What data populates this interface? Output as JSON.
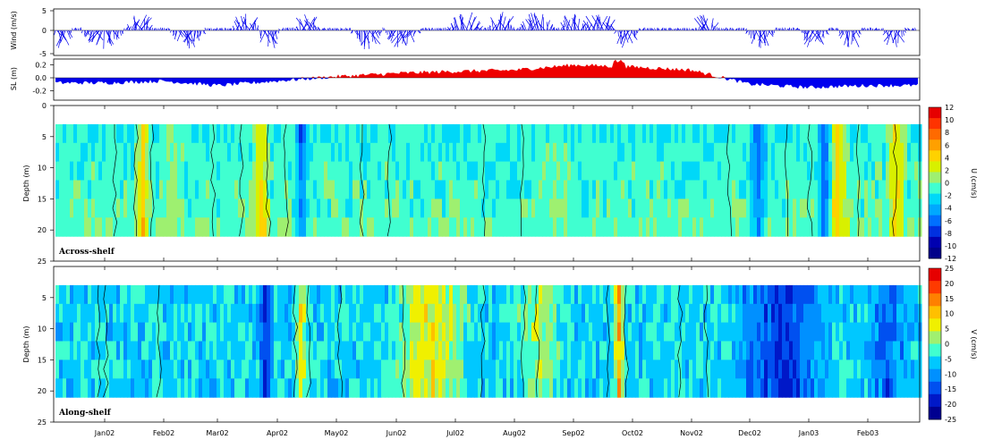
{
  "chart_data": [
    {
      "type": "line",
      "panel": "wind",
      "ylabel": "Wind (m/s)",
      "ylim": [
        -5,
        5
      ],
      "yticks": [
        5,
        0,
        -5
      ],
      "description_of_series": "wind stick vectors",
      "x_months": [
        "Jan02",
        "Feb02",
        "Mar02",
        "Apr02",
        "May02",
        "Jun02",
        "Jul02",
        "Aug02",
        "Sep02",
        "Oct02",
        "Nov02",
        "Dec02",
        "Jan03",
        "Feb03"
      ],
      "color": "#0000ee"
    },
    {
      "type": "area",
      "panel": "sea-level",
      "ylabel": "SL (m)",
      "ylim": [
        -0.3,
        0.3
      ],
      "yticks": [
        "0.2",
        "0.0",
        "-0.2"
      ],
      "positive_color": "#ee0000",
      "negative_color": "#0000ee",
      "approx_monthly_values": [
        -0.08,
        -0.05,
        -0.12,
        -0.05,
        0.02,
        0.07,
        0.1,
        0.12,
        0.2,
        0.17,
        0.12,
        -0.1,
        -0.15,
        -0.12
      ]
    },
    {
      "type": "heatmap",
      "panel": "across-shelf",
      "tag": "Across-shelf",
      "ylabel": "Depth (m)",
      "ylim": [
        25,
        0
      ],
      "yticks": [
        "0",
        "5",
        "10",
        "15",
        "20",
        "25"
      ],
      "colorbar_label": "U (cm/s)",
      "colorbar_ticks": [
        "12",
        "10",
        "8",
        "6",
        "4",
        "2",
        "0",
        "-2",
        "-4",
        "-6",
        "-8",
        "-10",
        "-12"
      ],
      "colorbar_colors": [
        "#e60000",
        "#ff3300",
        "#ff6a00",
        "#ffa000",
        "#ffd200",
        "#d8f000",
        "#9ef070",
        "#40ffd0",
        "#00d8f8",
        "#00a8ff",
        "#0070ff",
        "#0030e0",
        "#0000b0",
        "#00008a"
      ]
    },
    {
      "type": "heatmap",
      "panel": "along-shelf",
      "tag": "Along-shelf",
      "ylabel": "Depth (m)",
      "ylim": [
        25,
        0
      ],
      "yticks": [
        "5",
        "10",
        "15",
        "20",
        "25"
      ],
      "colorbar_label": "V (cm/s)",
      "colorbar_ticks": [
        "25",
        "20",
        "15",
        "10",
        "5",
        "0",
        "-5",
        "-10",
        "-15",
        "-20",
        "-25"
      ],
      "colorbar_colors": [
        "#e60000",
        "#ff3a00",
        "#ff8000",
        "#ffc000",
        "#f0f000",
        "#a0f070",
        "#40ffd0",
        "#00c8ff",
        "#0090ff",
        "#0050f0",
        "#0018c8",
        "#000090"
      ]
    }
  ]
}
